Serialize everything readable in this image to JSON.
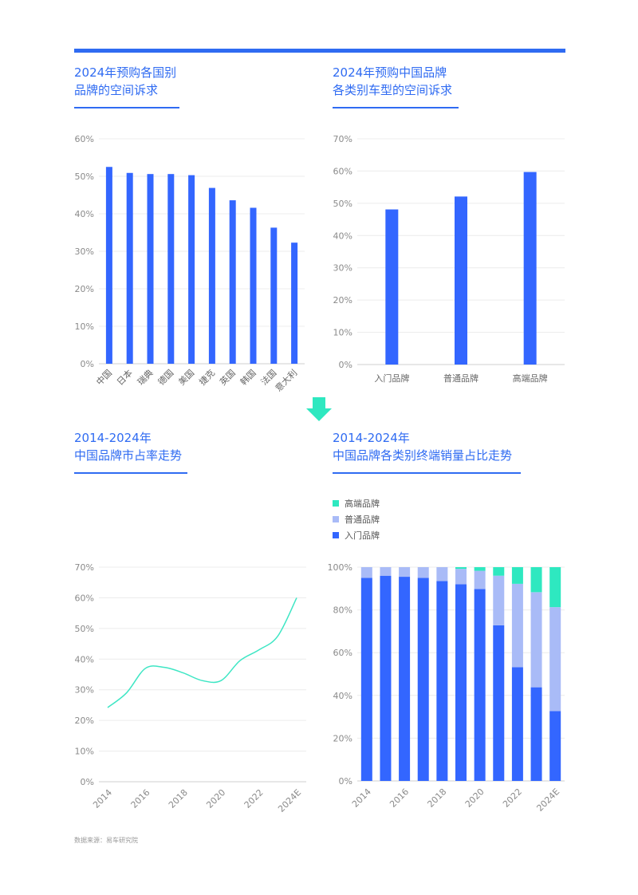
{
  "titles": {
    "chart1": [
      "2024年预购各国别",
      "品牌的空间诉求"
    ],
    "chart2": [
      "2024年预购中国品牌",
      "各类别车型的空间诉求"
    ],
    "chart3": [
      "2014-2024年",
      "中国品牌市占率走势"
    ],
    "chart4": [
      "2014-2024年",
      "中国品牌各类别终端销量占比走势"
    ]
  },
  "colors": {
    "primary": "#3366ff",
    "mid": "#a9bbf7",
    "high": "#2ee8c0",
    "line": "#3ee6c4",
    "arrow": "#2ee8c0"
  },
  "source": "数据来源：易车研究院",
  "chart_data": [
    {
      "type": "bar",
      "categories": [
        "中国",
        "日本",
        "瑞典",
        "德国",
        "美国",
        "捷克",
        "英国",
        "韩国",
        "法国",
        "意大利"
      ],
      "values": [
        52.5,
        50.9,
        50.6,
        50.6,
        50.3,
        46.9,
        43.6,
        41.6,
        36.3,
        32.3
      ],
      "ylim": [
        0,
        60
      ],
      "yticks": [
        "0%",
        "10%",
        "20%",
        "30%",
        "40%",
        "50%",
        "60%"
      ],
      "grid": true
    },
    {
      "type": "bar",
      "categories": [
        "入门品牌",
        "普通品牌",
        "高端品牌"
      ],
      "values": [
        48.1,
        52.1,
        59.7
      ],
      "ylim": [
        0,
        70
      ],
      "yticks": [
        "0%",
        "10%",
        "20%",
        "30%",
        "40%",
        "50%",
        "60%",
        "70%"
      ],
      "grid": true
    },
    {
      "type": "line",
      "x": [
        2014,
        2015,
        2016,
        2017,
        2018,
        2019,
        2020,
        2021,
        2022,
        2023,
        2024
      ],
      "xticks": [
        "2014",
        "2016",
        "2018",
        "2020",
        "2022",
        "2024E"
      ],
      "values": [
        24.2,
        29.0,
        37.0,
        37.3,
        35.5,
        33.0,
        33.0,
        39.5,
        43.0,
        47.5,
        60.0
      ],
      "ylim": [
        0,
        70
      ],
      "yticks": [
        "0%",
        "10%",
        "20%",
        "30%",
        "40%",
        "50%",
        "60%",
        "70%"
      ],
      "grid": true
    },
    {
      "type": "bar",
      "stacked": true,
      "x": [
        2014,
        2015,
        2016,
        2017,
        2018,
        2019,
        2020,
        2021,
        2022,
        2023,
        2024
      ],
      "xticks": [
        "2014",
        "2016",
        "2018",
        "2020",
        "2022",
        "2024E"
      ],
      "series": [
        {
          "name": "入门品牌",
          "values": [
            95,
            96,
            95.5,
            95,
            93.5,
            92,
            89.8,
            72.8,
            53.2,
            43.8,
            32.7
          ]
        },
        {
          "name": "普通品牌",
          "values": [
            5,
            4,
            4.5,
            5,
            6.5,
            7.2,
            8.5,
            23.2,
            39.0,
            44.5,
            48.6
          ]
        },
        {
          "name": "高端品牌",
          "values": [
            0,
            0,
            0,
            0,
            0,
            0.8,
            1.7,
            4.0,
            7.8,
            11.7,
            18.7
          ]
        }
      ],
      "legend": [
        "高端品牌",
        "普通品牌",
        "入门品牌"
      ],
      "ylim": [
        0,
        100
      ],
      "yticks": [
        "0%",
        "20%",
        "40%",
        "60%",
        "80%",
        "100%"
      ],
      "legend_position": "top-left",
      "grid": true
    }
  ]
}
